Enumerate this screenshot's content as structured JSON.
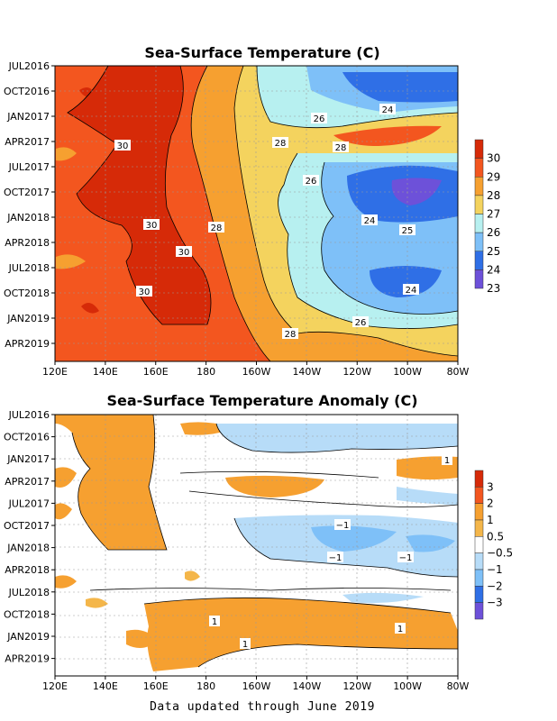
{
  "footer": "Data updated through June 2019",
  "chart_data": [
    {
      "type": "heatmap",
      "title": "Sea-Surface Temperature (C)",
      "xlabel": "",
      "ylabel": "",
      "x_tick_labels": [
        "120E",
        "140E",
        "160E",
        "180",
        "160W",
        "140W",
        "120W",
        "100W",
        "80W"
      ],
      "y_tick_labels": [
        "JUL2016",
        "OCT2016",
        "JAN2017",
        "APR2017",
        "JUL2017",
        "OCT2017",
        "JAN2018",
        "APR2018",
        "JUL2018",
        "OCT2018",
        "JAN2019",
        "APR2019"
      ],
      "colorbar": {
        "levels": [
          "30",
          "29",
          "28",
          "27",
          "26",
          "25",
          "24",
          "23"
        ],
        "colors": [
          "#d62a08",
          "#f3561f",
          "#f6a030",
          "#f4d35e",
          "#b7f0f0",
          "#7ec0f8",
          "#2f6fe6",
          "#6d51d9"
        ]
      },
      "contour_labels": [
        "24",
        "26",
        "28",
        "28",
        "30",
        "26",
        "24",
        "25",
        "30",
        "28",
        "30",
        "30",
        "24",
        "26",
        "28"
      ],
      "grid": true
    },
    {
      "type": "heatmap",
      "title": "Sea-Surface Temperature Anomaly (C)",
      "xlabel": "",
      "ylabel": "",
      "x_tick_labels": [
        "120E",
        "140E",
        "160E",
        "180",
        "160W",
        "140W",
        "120W",
        "100W",
        "80W"
      ],
      "y_tick_labels": [
        "JUL2016",
        "OCT2016",
        "JAN2017",
        "APR2017",
        "JUL2017",
        "OCT2017",
        "JAN2018",
        "APR2018",
        "JUL2018",
        "OCT2018",
        "JAN2019",
        "APR2019"
      ],
      "colorbar": {
        "levels": [
          "3",
          "2",
          "1",
          "0.5",
          "−0.5",
          "−1",
          "−2",
          "−3"
        ],
        "colors": [
          "#d62a08",
          "#f3561f",
          "#f6a030",
          "#f4b64a",
          "#ffffff",
          "#b7dcf8",
          "#7ec0f8",
          "#2f6fe6",
          "#6d51d9"
        ]
      },
      "contour_labels": [
        "1",
        "−1",
        "−1",
        "−1",
        "1",
        "1",
        "1"
      ],
      "grid": true
    }
  ]
}
